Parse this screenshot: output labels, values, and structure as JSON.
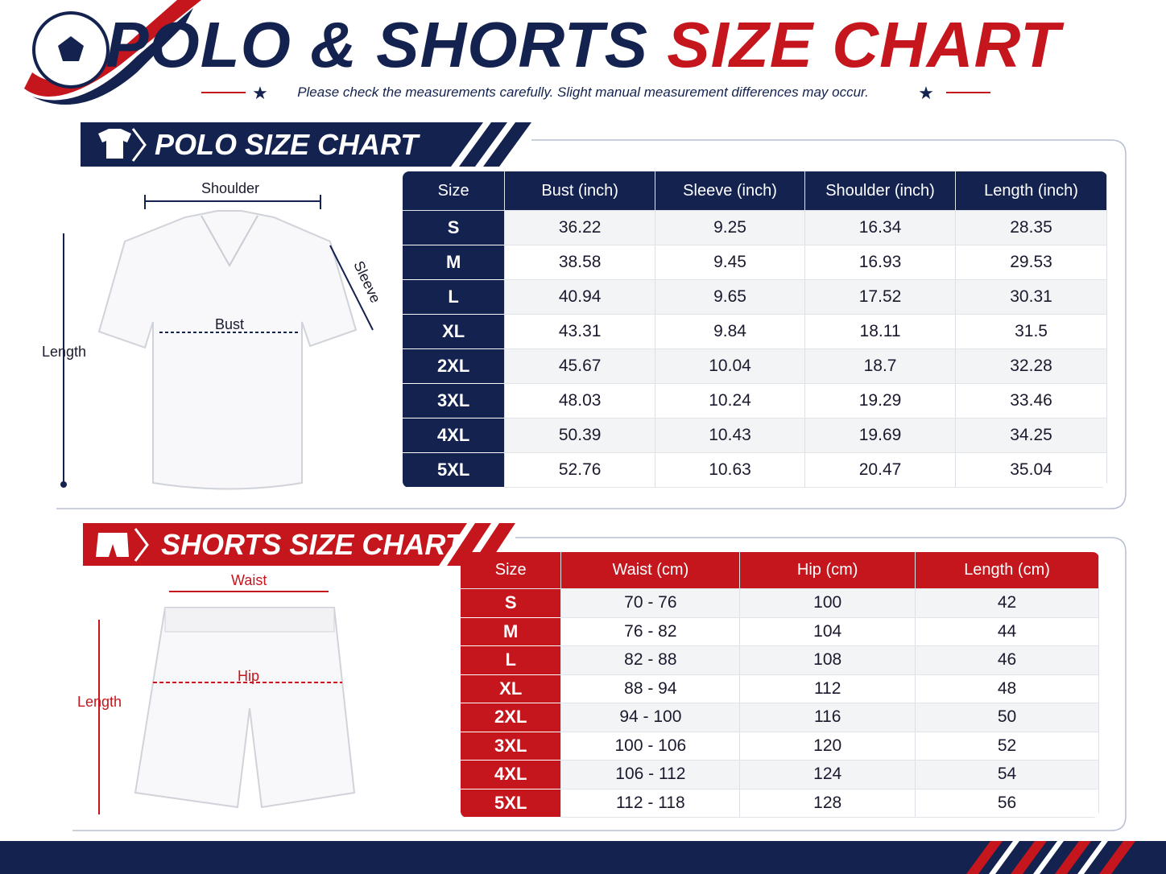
{
  "header": {
    "title_main": "POLO & SHORTS",
    "title_accent": "SIZE CHART",
    "subtitle": "Please check the measurements carefully. Slight manual measurement differences may occur."
  },
  "polo": {
    "heading": "POLO SIZE CHART",
    "diagram": {
      "shoulder": "Shoulder",
      "sleeve": "Sleeve",
      "bust": "Bust",
      "length": "Length"
    },
    "table": {
      "columns": [
        "Size",
        "Bust (inch)",
        "Sleeve (inch)",
        "Shoulder (inch)",
        "Length (inch)"
      ],
      "rows": [
        [
          "S",
          "36.22",
          "9.25",
          "16.34",
          "28.35"
        ],
        [
          "M",
          "38.58",
          "9.45",
          "16.93",
          "29.53"
        ],
        [
          "L",
          "40.94",
          "9.65",
          "17.52",
          "30.31"
        ],
        [
          "XL",
          "43.31",
          "9.84",
          "18.11",
          "31.5"
        ],
        [
          "2XL",
          "45.67",
          "10.04",
          "18.7",
          "32.28"
        ],
        [
          "3XL",
          "48.03",
          "10.24",
          "19.29",
          "33.46"
        ],
        [
          "4XL",
          "50.39",
          "10.43",
          "19.69",
          "34.25"
        ],
        [
          "5XL",
          "52.76",
          "10.63",
          "20.47",
          "35.04"
        ]
      ]
    }
  },
  "shorts": {
    "heading": "SHORTS SIZE CHART",
    "diagram": {
      "waist": "Waist",
      "hip": "Hip",
      "length": "Length"
    },
    "table": {
      "columns": [
        "Size",
        "Waist (cm)",
        "Hip (cm)",
        "Length (cm)"
      ],
      "rows": [
        [
          "S",
          "70 - 76",
          "100",
          "42"
        ],
        [
          "M",
          "76 - 82",
          "104",
          "44"
        ],
        [
          "L",
          "82 - 88",
          "108",
          "46"
        ],
        [
          "XL",
          "88 - 94",
          "112",
          "48"
        ],
        [
          "2XL",
          "94 - 100",
          "116",
          "50"
        ],
        [
          "3XL",
          "100 - 106",
          "120",
          "52"
        ],
        [
          "4XL",
          "106 - 112",
          "124",
          "54"
        ],
        [
          "5XL",
          "112 - 118",
          "128",
          "56"
        ]
      ]
    }
  }
}
